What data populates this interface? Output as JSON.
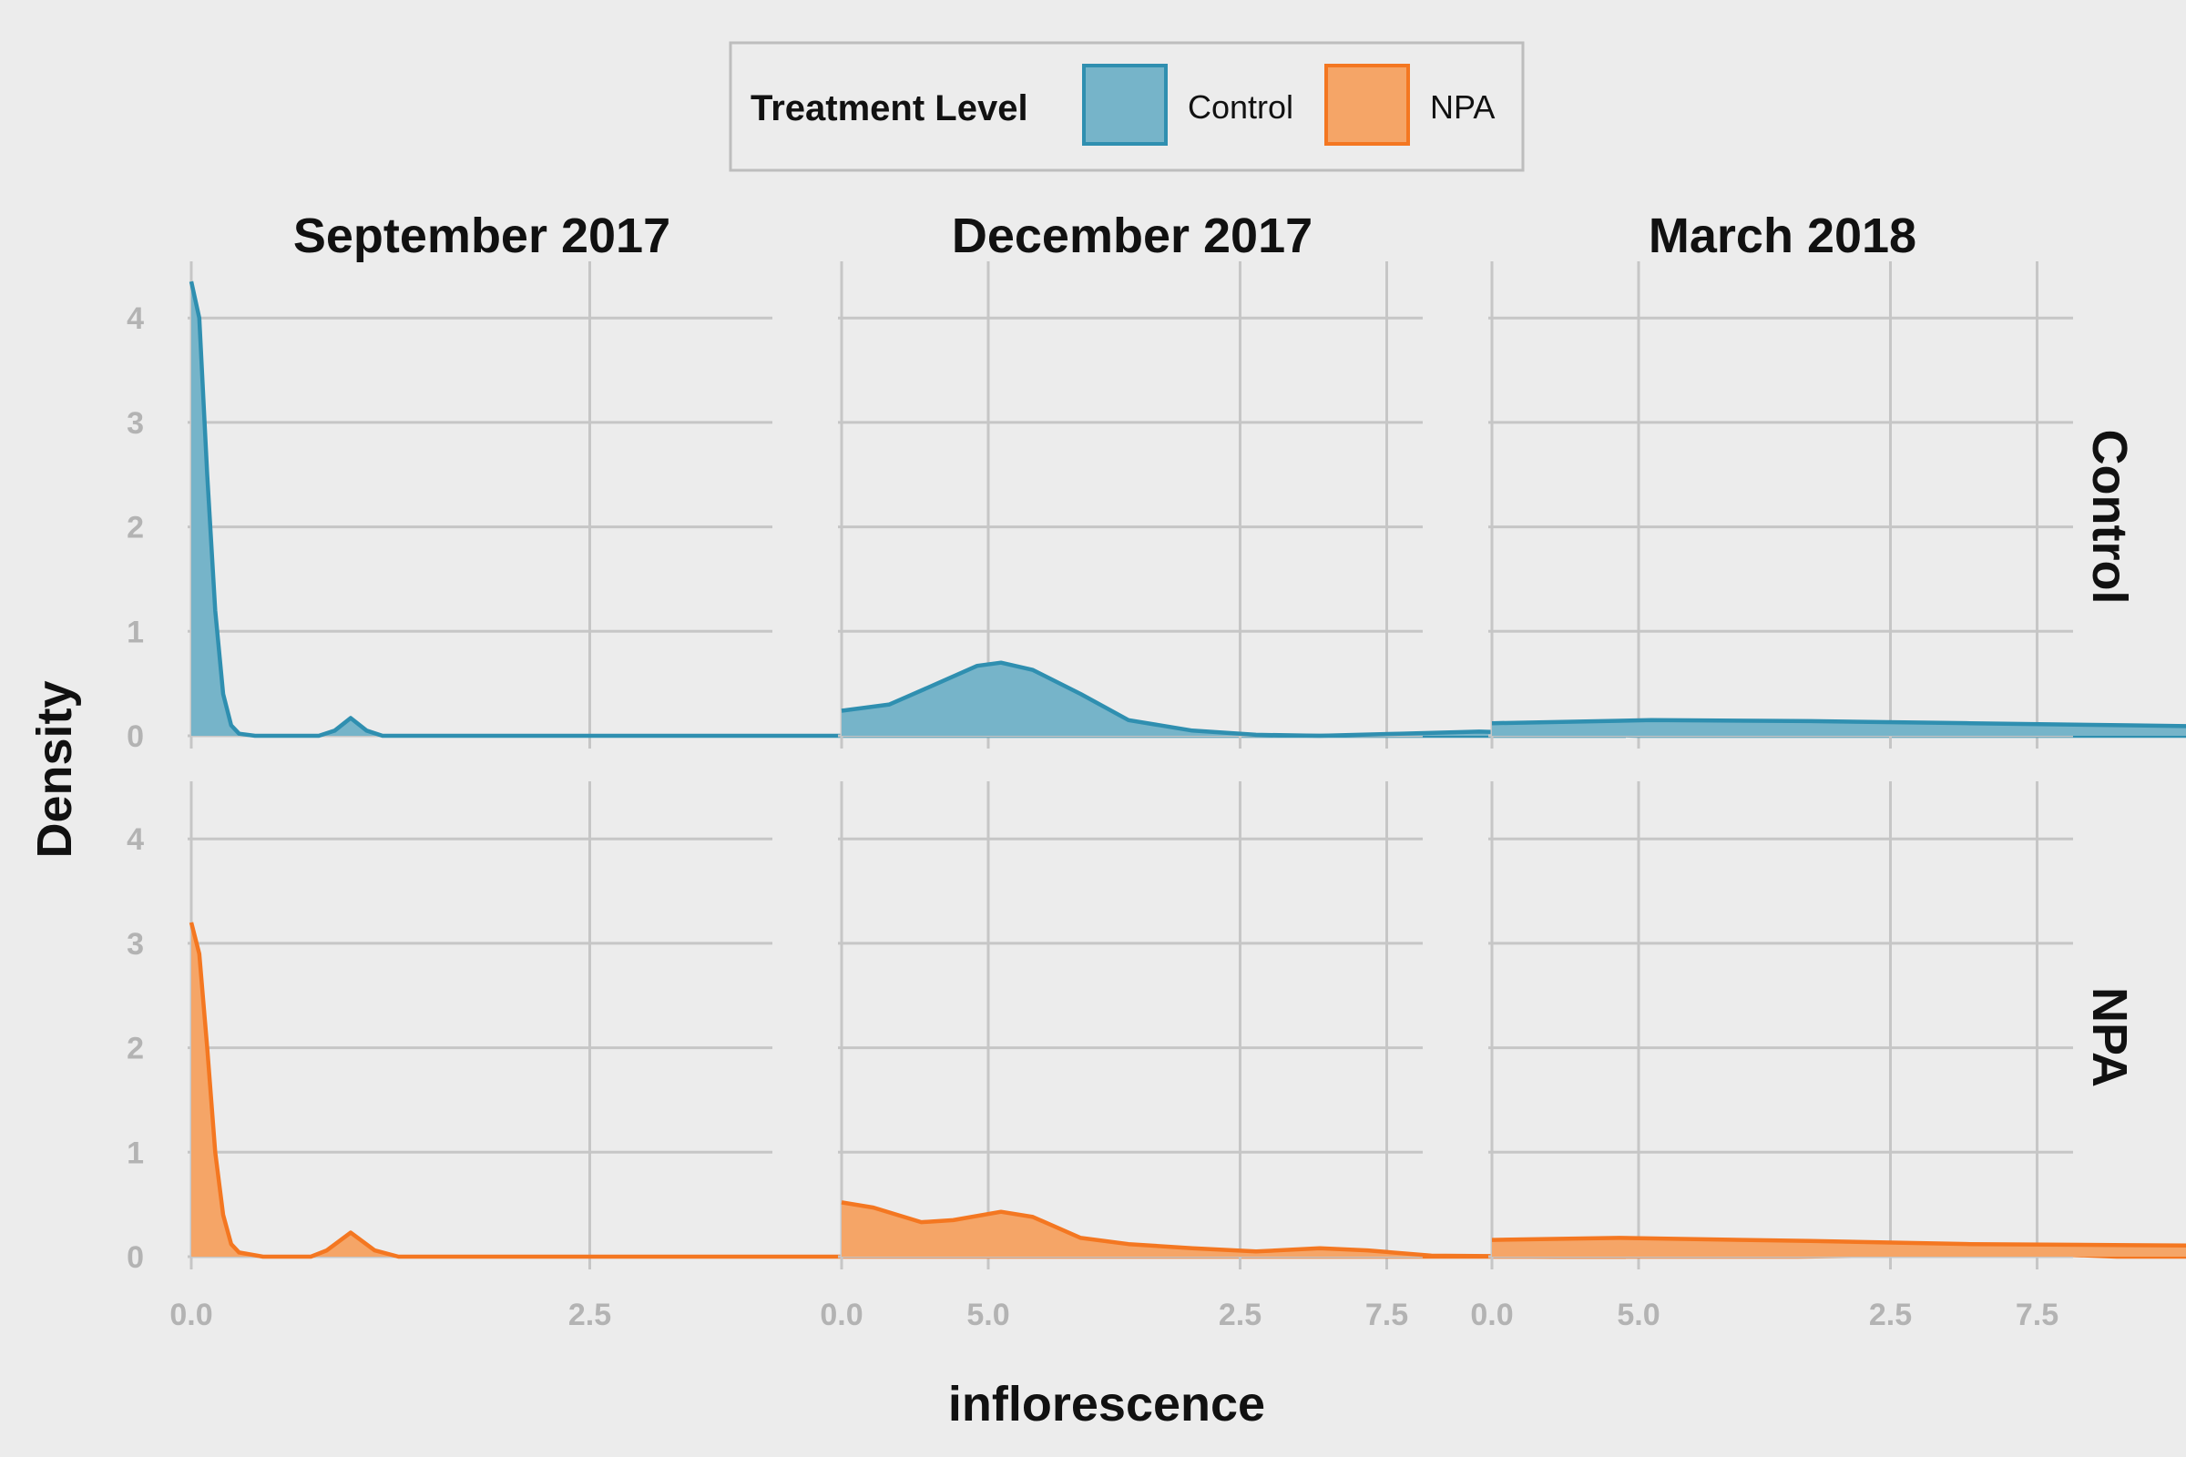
{
  "chart_data": {
    "type": "area",
    "xlabel": "inflorescence",
    "ylabel": "Density",
    "xlim": [
      0,
      9
    ],
    "ylim": [
      0,
      4.5
    ],
    "x_ticks": [
      "0.0",
      "2.5",
      "5.0",
      "7.5"
    ],
    "y_ticks": [
      "0",
      "1",
      "2",
      "3",
      "4"
    ],
    "grid": true,
    "legend": {
      "title": "Treatment Level",
      "position": "top",
      "items": [
        {
          "label": "Control",
          "color": "#2f8fb0",
          "fill": "#76b4c9"
        },
        {
          "label": "NPA",
          "color": "#f47721",
          "fill": "#f5a567"
        }
      ]
    },
    "columns": [
      "September 2017",
      "December 2017",
      "March 2018"
    ],
    "rows": [
      "Control",
      "NPA"
    ],
    "panels": [
      {
        "row": "Control",
        "column": "September 2017",
        "points": [
          [
            0,
            4.35
          ],
          [
            0.05,
            4.0
          ],
          [
            0.1,
            2.5
          ],
          [
            0.15,
            1.2
          ],
          [
            0.2,
            0.4
          ],
          [
            0.25,
            0.1
          ],
          [
            0.3,
            0.02
          ],
          [
            0.4,
            0.0
          ],
          [
            0.8,
            0.0
          ],
          [
            0.9,
            0.05
          ],
          [
            1.0,
            0.17
          ],
          [
            1.1,
            0.05
          ],
          [
            1.2,
            0.0
          ],
          [
            9.0,
            0.0
          ]
        ]
      },
      {
        "row": "Control",
        "column": "December 2017",
        "points": [
          [
            0,
            0.24
          ],
          [
            0.3,
            0.3
          ],
          [
            0.6,
            0.5
          ],
          [
            0.85,
            0.67
          ],
          [
            1.0,
            0.7
          ],
          [
            1.2,
            0.63
          ],
          [
            1.5,
            0.4
          ],
          [
            1.8,
            0.15
          ],
          [
            2.2,
            0.05
          ],
          [
            2.6,
            0.01
          ],
          [
            3.0,
            0.0
          ],
          [
            3.5,
            0.02
          ],
          [
            4.0,
            0.04
          ],
          [
            4.5,
            0.02
          ],
          [
            5.0,
            0.0
          ],
          [
            9.0,
            0.0
          ]
        ]
      },
      {
        "row": "Control",
        "column": "March 2018",
        "points": [
          [
            0,
            0.12
          ],
          [
            1.0,
            0.15
          ],
          [
            2.0,
            0.14
          ],
          [
            3.0,
            0.12
          ],
          [
            4.0,
            0.1
          ],
          [
            5.0,
            0.08
          ],
          [
            6.0,
            0.05
          ],
          [
            7.0,
            0.04
          ],
          [
            8.0,
            0.04
          ],
          [
            9.0,
            0.03
          ]
        ]
      },
      {
        "row": "NPA",
        "column": "September 2017",
        "points": [
          [
            0,
            3.2
          ],
          [
            0.05,
            2.9
          ],
          [
            0.1,
            2.0
          ],
          [
            0.15,
            1.0
          ],
          [
            0.2,
            0.4
          ],
          [
            0.25,
            0.12
          ],
          [
            0.3,
            0.04
          ],
          [
            0.45,
            0.0
          ],
          [
            0.75,
            0.0
          ],
          [
            0.85,
            0.06
          ],
          [
            1.0,
            0.23
          ],
          [
            1.15,
            0.06
          ],
          [
            1.3,
            0.0
          ],
          [
            9.0,
            0.0
          ]
        ]
      },
      {
        "row": "NPA",
        "column": "December 2017",
        "points": [
          [
            0,
            0.52
          ],
          [
            0.2,
            0.47
          ],
          [
            0.5,
            0.33
          ],
          [
            0.7,
            0.35
          ],
          [
            1.0,
            0.43
          ],
          [
            1.2,
            0.38
          ],
          [
            1.5,
            0.18
          ],
          [
            1.8,
            0.12
          ],
          [
            2.2,
            0.08
          ],
          [
            2.6,
            0.05
          ],
          [
            3.0,
            0.08
          ],
          [
            3.3,
            0.06
          ],
          [
            3.7,
            0.01
          ],
          [
            4.5,
            0.0
          ],
          [
            6.0,
            0.0
          ],
          [
            6.5,
            0.01
          ],
          [
            7.0,
            0.04
          ],
          [
            7.5,
            0.03
          ],
          [
            8.0,
            0.0
          ],
          [
            9.0,
            0.0
          ]
        ]
      },
      {
        "row": "NPA",
        "column": "March 2018",
        "points": [
          [
            0,
            0.16
          ],
          [
            0.8,
            0.18
          ],
          [
            2.0,
            0.15
          ],
          [
            3.0,
            0.12
          ],
          [
            4.0,
            0.11
          ],
          [
            5.0,
            0.1
          ],
          [
            6.0,
            0.07
          ],
          [
            7.0,
            0.03
          ],
          [
            8.0,
            0.01
          ],
          [
            9.0,
            0.0
          ]
        ]
      }
    ]
  }
}
